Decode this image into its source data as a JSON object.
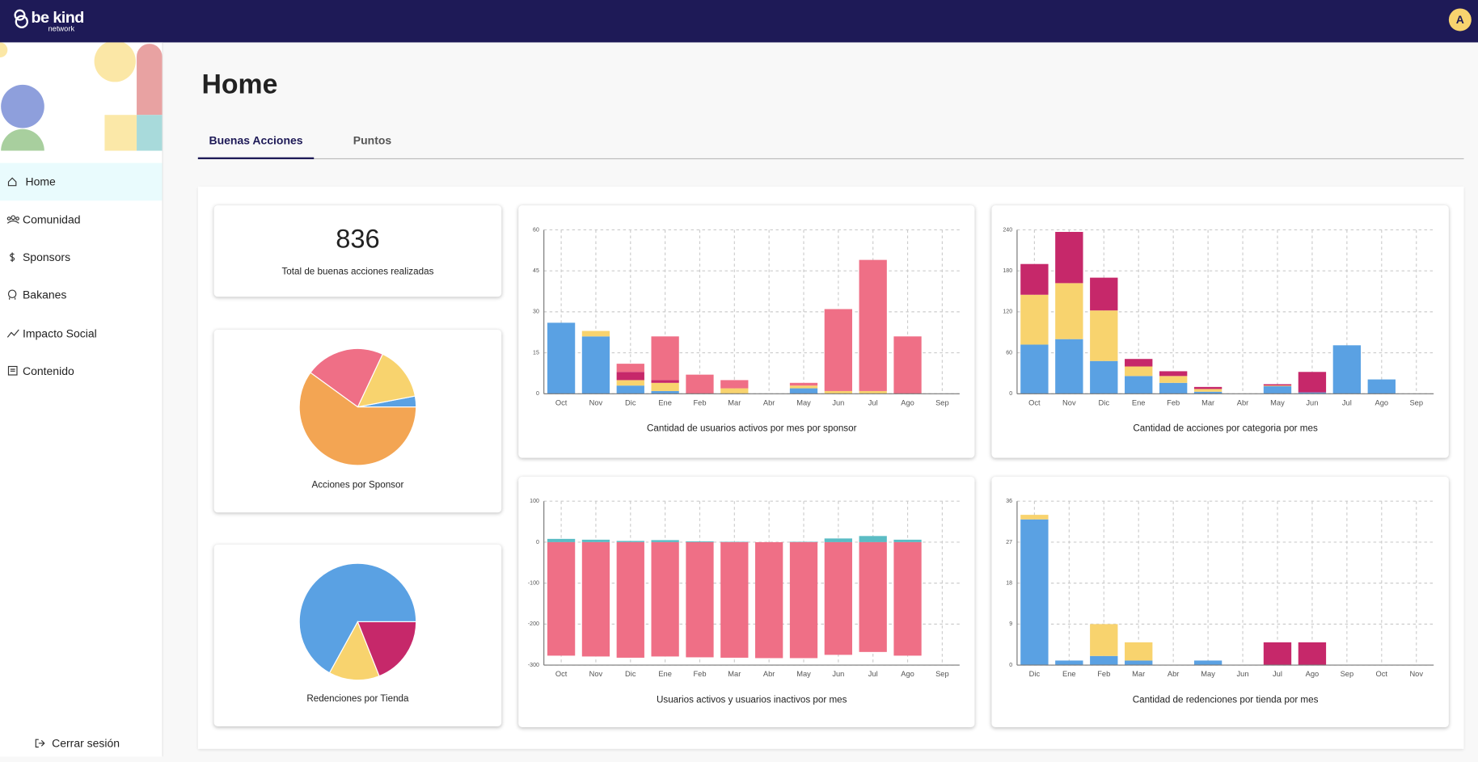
{
  "header": {
    "logo": "be kind",
    "logo_sub": "network",
    "avatar": "A"
  },
  "sidebar": {
    "items": [
      "Home",
      "Comunidad",
      "Sponsors",
      "Bakanes",
      "Impacto Social",
      "Contenido"
    ],
    "logout": "Cerrar sesión"
  },
  "page": {
    "title": "Home",
    "tabs": [
      "Buenas Acciones",
      "Puntos"
    ]
  },
  "stat": {
    "value": 836,
    "label": "Total de buenas acciones realizadas"
  },
  "chart_data": [
    {
      "type": "pie",
      "title": "Acciones por Sponsor",
      "values": [
        3,
        15,
        22,
        60
      ],
      "colors": [
        "#5aa1e3",
        "#f8d36e",
        "#ef6f86",
        "#f3a553"
      ]
    },
    {
      "type": "pie",
      "title": "Redenciones por Tienda",
      "values": [
        67,
        14,
        19
      ],
      "colors": [
        "#5aa1e3",
        "#f8d36e",
        "#c6286a"
      ]
    },
    {
      "type": "bar",
      "stacked": true,
      "grid": true,
      "title": "Cantidad de usuarios activos por mes por sponsor",
      "categories": [
        "Oct",
        "Nov",
        "Dic",
        "Ene",
        "Feb",
        "Mar",
        "Abr",
        "May",
        "Jun",
        "Jul",
        "Ago",
        "Sep"
      ],
      "ylim": [
        0,
        60
      ],
      "yticks": [
        0,
        15,
        30,
        45,
        60
      ],
      "series": [
        {
          "color": "#5aa1e3",
          "values": [
            26,
            21,
            3,
            1,
            0,
            0,
            0,
            2,
            0,
            0,
            0,
            0
          ]
        },
        {
          "color": "#f8d36e",
          "values": [
            0,
            2,
            2,
            3,
            0,
            2,
            0,
            1,
            1,
            1,
            0,
            0
          ]
        },
        {
          "color": "#c6286a",
          "values": [
            0,
            0,
            3,
            1,
            0,
            0,
            0,
            0,
            0,
            0,
            0,
            0
          ]
        },
        {
          "color": "#ef6f86",
          "values": [
            0,
            0,
            3,
            16,
            7,
            3,
            0,
            1,
            30,
            48,
            21,
            0
          ]
        }
      ]
    },
    {
      "type": "bar",
      "stacked": true,
      "grid": true,
      "title": "Cantidad de acciones por categoria por mes",
      "categories": [
        "Oct",
        "Nov",
        "Dic",
        "Ene",
        "Feb",
        "Mar",
        "Abr",
        "May",
        "Jun",
        "Jul",
        "Ago",
        "Sep"
      ],
      "ylim": [
        0,
        240
      ],
      "yticks": [
        0,
        60,
        120,
        180,
        240
      ],
      "series": [
        {
          "color": "#5aa1e3",
          "values": [
            72,
            80,
            48,
            26,
            16,
            3,
            0,
            11,
            2,
            71,
            21,
            0
          ]
        },
        {
          "color": "#f8d36e",
          "values": [
            73,
            82,
            74,
            14,
            10,
            4,
            0,
            1,
            0,
            0,
            0,
            0
          ]
        },
        {
          "color": "#c6286a",
          "values": [
            45,
            75,
            48,
            11,
            7,
            3,
            0,
            2,
            30,
            0,
            0,
            0
          ]
        }
      ]
    },
    {
      "type": "bar",
      "stacked": true,
      "grid": true,
      "title": "Usuarios activos y usuarios inactivos por mes",
      "categories": [
        "Oct",
        "Nov",
        "Dic",
        "Ene",
        "Feb",
        "Mar",
        "Abr",
        "May",
        "Jun",
        "Jul",
        "Ago",
        "Sep"
      ],
      "ylim": [
        -300,
        100
      ],
      "yticks": [
        -300,
        -200,
        -100,
        0,
        100
      ],
      "series": [
        {
          "color": "#5bbcc4",
          "values": [
            8,
            6,
            3,
            5,
            2,
            1,
            0,
            1,
            9,
            15,
            6,
            0
          ]
        },
        {
          "color": "#ef6f86",
          "values": [
            -277,
            -279,
            -282,
            -279,
            -281,
            -282,
            -283,
            -283,
            -275,
            -268,
            -277,
            0
          ]
        }
      ]
    },
    {
      "type": "bar",
      "stacked": true,
      "grid": true,
      "title": "Cantidad de redenciones por tienda por mes",
      "categories": [
        "Dic",
        "Ene",
        "Feb",
        "Mar",
        "Abr",
        "May",
        "Jun",
        "Jul",
        "Ago",
        "Sep",
        "Oct",
        "Nov"
      ],
      "ylim": [
        0,
        36
      ],
      "yticks": [
        0,
        9,
        18,
        27,
        36
      ],
      "series": [
        {
          "color": "#5aa1e3",
          "values": [
            32,
            1,
            2,
            1,
            0,
            1,
            0,
            0,
            0,
            0,
            0,
            0
          ]
        },
        {
          "color": "#f8d36e",
          "values": [
            1,
            0,
            7,
            4,
            0,
            0,
            0,
            0,
            0,
            0,
            0,
            0
          ]
        },
        {
          "color": "#c6286a",
          "values": [
            0,
            0,
            0,
            0,
            0,
            0,
            0,
            5,
            5,
            0,
            0,
            0
          ]
        }
      ]
    }
  ]
}
